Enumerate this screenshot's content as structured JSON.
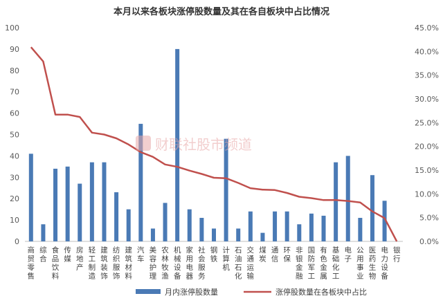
{
  "chart_data": {
    "type": "bar",
    "title": "本月以来各板块涨停股数量及其在各自板块中占比情况",
    "categories": [
      "商贸零售",
      "综合",
      "食品饮料",
      "传媒",
      "房地产",
      "轻工制造",
      "建筑装饰",
      "纺织服饰",
      "建筑材料",
      "汽车",
      "美容护理",
      "农林牧渔",
      "机械设备",
      "家用电器",
      "社会服务",
      "钢铁",
      "计算机",
      "石油石化",
      "交通运输",
      "煤炭",
      "通信",
      "环保",
      "非银金融",
      "国防军工",
      "有色金属",
      "基础化工",
      "电子",
      "公用事业",
      "医药生物",
      "电力设备",
      "银行"
    ],
    "series": [
      {
        "name": "月内涨停股数量",
        "type": "bar",
        "axis": "left",
        "color": "#4a7ab5",
        "values": [
          41,
          8,
          34,
          35,
          27,
          37,
          37,
          23,
          15,
          55,
          6,
          18,
          90,
          15,
          11,
          6,
          48,
          6,
          14,
          4,
          14,
          14,
          8,
          13,
          12,
          37,
          40,
          11,
          31,
          19,
          0
        ]
      },
      {
        "name": "涨停股数量在各板块中占比",
        "type": "line",
        "axis": "right",
        "color": "#c0504d",
        "values": [
          40.9,
          37.9,
          26.7,
          26.7,
          26.2,
          22.9,
          22.5,
          21.7,
          20.4,
          18.8,
          17.8,
          16.2,
          15.7,
          14.9,
          14.2,
          13.4,
          13.3,
          12.3,
          11.2,
          10.9,
          10.8,
          10.2,
          9.4,
          9.1,
          8.7,
          8.7,
          8.5,
          8.2,
          6.3,
          4.9,
          0.0
        ]
      }
    ],
    "ylim_left": [
      0,
      100
    ],
    "yticks_left": [
      "0",
      "10",
      "20",
      "30",
      "40",
      "50",
      "60",
      "70",
      "80",
      "90",
      "100"
    ],
    "ylim_right": [
      0,
      45
    ],
    "yticks_right": [
      "0.0%",
      "5.0%",
      "10.0%",
      "15.0%",
      "20.0%",
      "25.0%",
      "30.0%",
      "35.0%",
      "40.0%",
      "45.0%"
    ],
    "legend_position": "bottom",
    "grid": false,
    "watermark": "财联社股市频道"
  }
}
